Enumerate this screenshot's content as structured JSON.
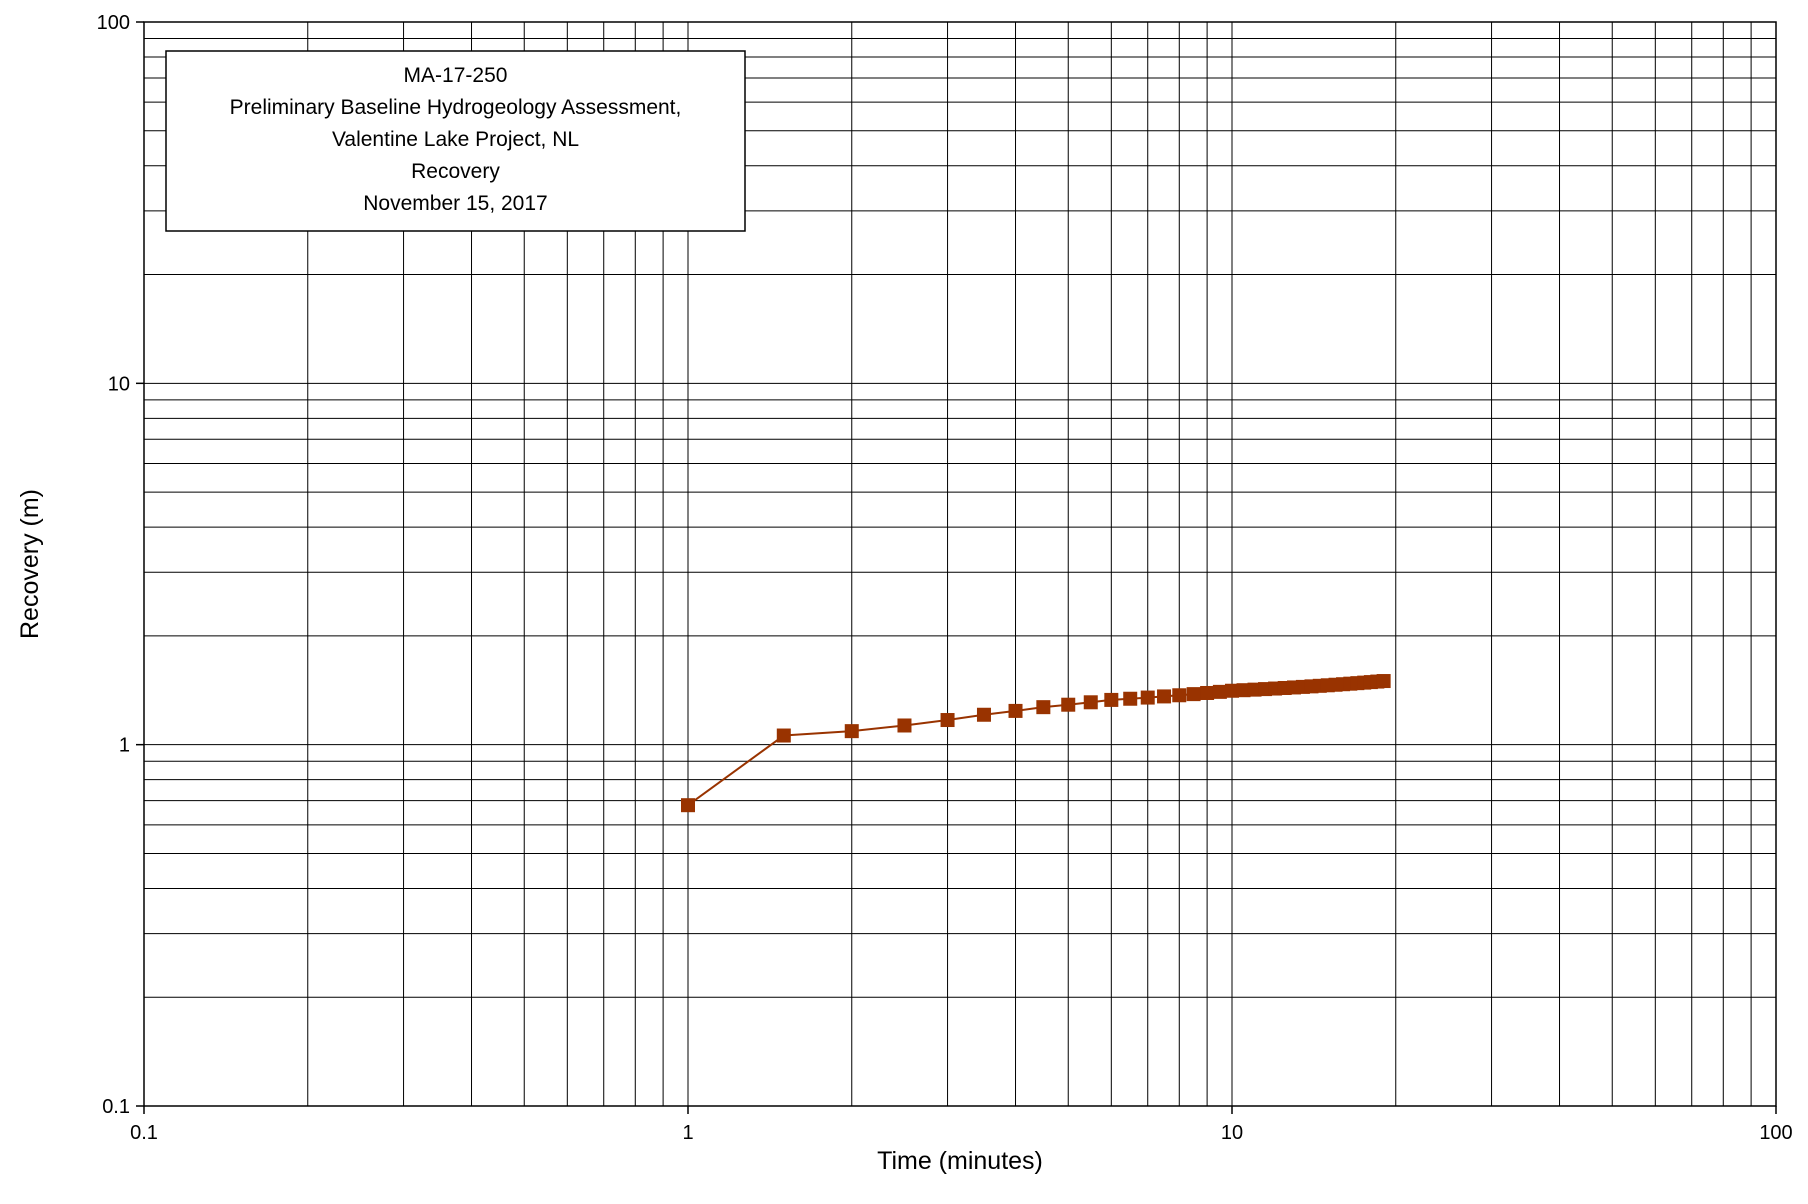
{
  "chart_data": {
    "type": "line",
    "xlabel": "Time (minutes)",
    "ylabel": "Recovery (m)",
    "x_scale": "log",
    "y_scale": "log",
    "xlim": [
      0.1,
      100
    ],
    "ylim": [
      0.1,
      100
    ],
    "x_tick_labels": [
      "0.1",
      "1",
      "10",
      "100"
    ],
    "y_tick_labels": [
      "0.1",
      "1",
      "10",
      "100"
    ],
    "grid": true,
    "annotation": [
      "MA-17-250",
      "Preliminary Baseline Hydrogeology Assessment,",
      "Valentine Lake Project, NL",
      "Recovery",
      "November 15, 2017"
    ],
    "series": [
      {
        "color": "#993300",
        "marker": "square",
        "x": [
          1,
          1.5,
          2,
          2.5,
          3,
          3.5,
          4,
          4.5,
          5,
          5.5,
          6,
          6.5,
          7,
          7.5,
          8,
          8.5,
          9,
          9.5,
          10,
          10.5,
          11,
          11.5,
          12,
          12.5,
          13,
          13.5,
          14,
          14.5,
          15,
          15.5,
          16,
          16.5,
          17,
          17.5,
          18,
          18.5,
          19
        ],
        "y": [
          0.68,
          1.06,
          1.09,
          1.13,
          1.17,
          1.21,
          1.24,
          1.27,
          1.29,
          1.31,
          1.33,
          1.34,
          1.35,
          1.36,
          1.37,
          1.38,
          1.39,
          1.4,
          1.41,
          1.415,
          1.42,
          1.425,
          1.43,
          1.435,
          1.44,
          1.445,
          1.45,
          1.455,
          1.46,
          1.465,
          1.47,
          1.475,
          1.48,
          1.485,
          1.49,
          1.495,
          1.5
        ]
      }
    ]
  }
}
